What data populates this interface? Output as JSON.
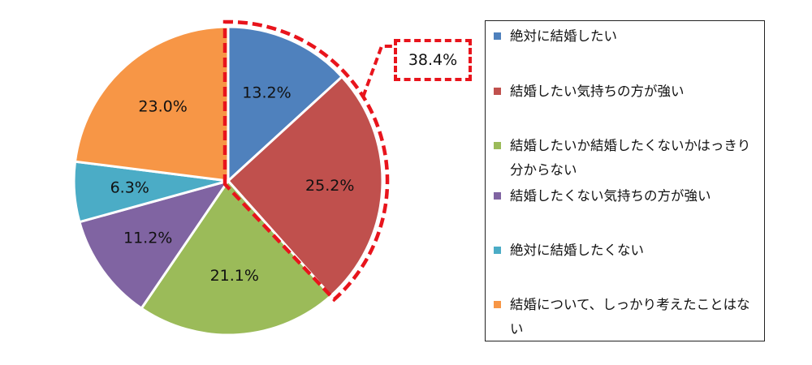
{
  "chart_data": {
    "type": "pie",
    "start_angle_deg": 0,
    "direction": "clockwise",
    "categories": [
      "絶対に結婚したい",
      "結婚したい気持ちの方が強い",
      "結婚したいか結婚したくないかはっきり分からない",
      "結婚したくない気持ちの方が強い",
      "絶対に結婚したくない",
      "結婚について、しっかり考えたことはない"
    ],
    "values": [
      13.2,
      25.2,
      21.1,
      11.2,
      6.3,
      23.0
    ],
    "value_labels": [
      "13.2%",
      "25.2%",
      "21.1%",
      "11.2%",
      "6.3%",
      "23.0%"
    ],
    "colors": [
      "#4f81bd",
      "#c0504d",
      "#9bbb59",
      "#8064a2",
      "#4bacc6",
      "#f79646"
    ],
    "legend_position": "right",
    "highlight": {
      "slices": [
        0,
        1
      ],
      "label": "38.4%",
      "style": "red-dashed"
    }
  }
}
